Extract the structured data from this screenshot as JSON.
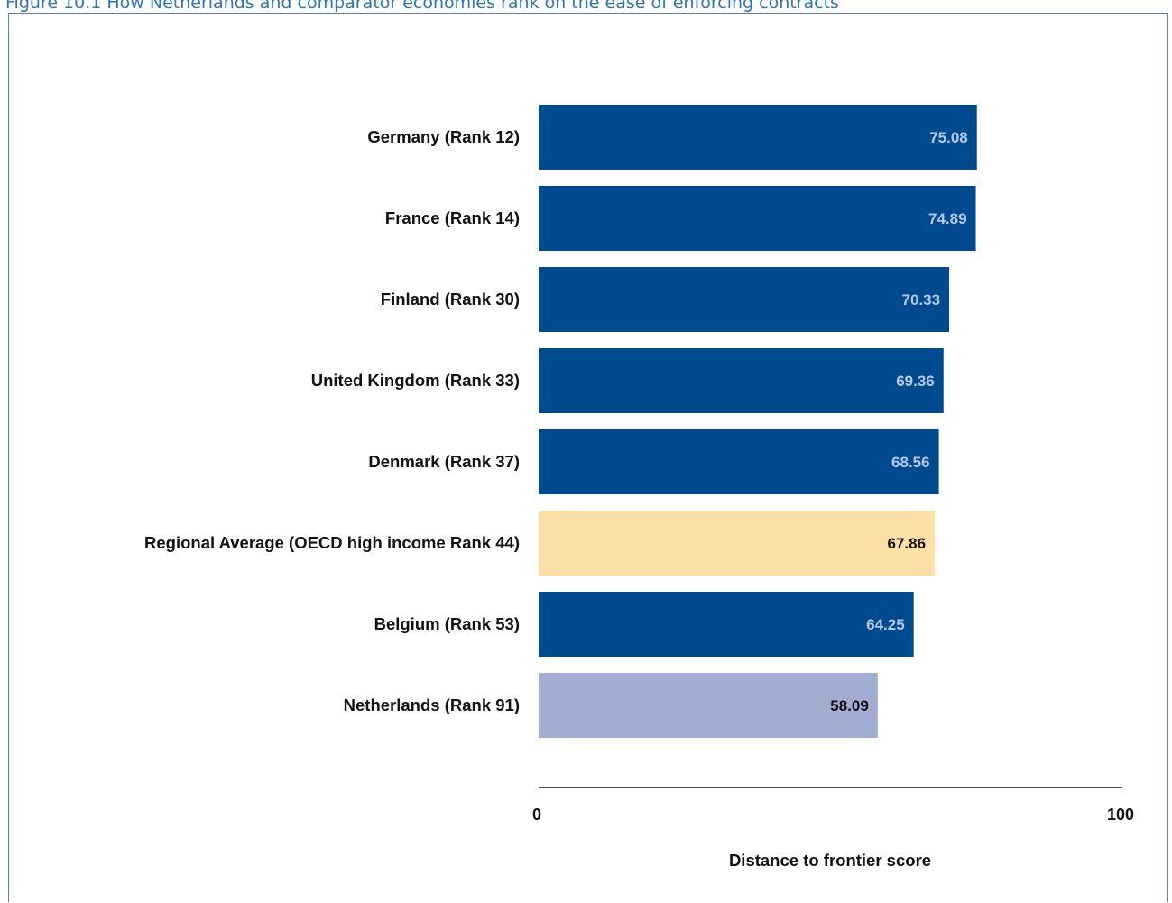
{
  "caption": "Figure 10.1 How Netherlands and comparator economies rank on the ease of enforcing contracts",
  "chart_data": {
    "type": "bar",
    "orientation": "horizontal",
    "categories": [
      "Germany (Rank 12)",
      "France (Rank 14)",
      "Finland (Rank 30)",
      "United Kingdom (Rank 33)",
      "Denmark (Rank 37)",
      "Regional Average (OECD high income Rank 44)",
      "Belgium (Rank 53)",
      "Netherlands (Rank 91)"
    ],
    "values": [
      75.08,
      74.89,
      70.33,
      69.36,
      68.56,
      67.86,
      64.25,
      58.09
    ],
    "value_labels": [
      "75.08",
      "74.89",
      "70.33",
      "69.36",
      "68.56",
      "67.86",
      "64.25",
      "58.09"
    ],
    "bar_colors": [
      "#004a8f",
      "#004a8f",
      "#004a8f",
      "#004a8f",
      "#004a8f",
      "#fde0a8",
      "#004a8f",
      "#a3add1"
    ],
    "value_label_colors": [
      "#b7c8e4",
      "#b7c8e4",
      "#b7c8e4",
      "#b7c8e4",
      "#b7c8e4",
      "#111111",
      "#b7c8e4",
      "#111111"
    ],
    "xlabel": "Distance to frontier score",
    "ylabel": "",
    "xlim": [
      0,
      100
    ],
    "xticks": [
      "0",
      "100"
    ],
    "grid": false,
    "legend": "none"
  }
}
